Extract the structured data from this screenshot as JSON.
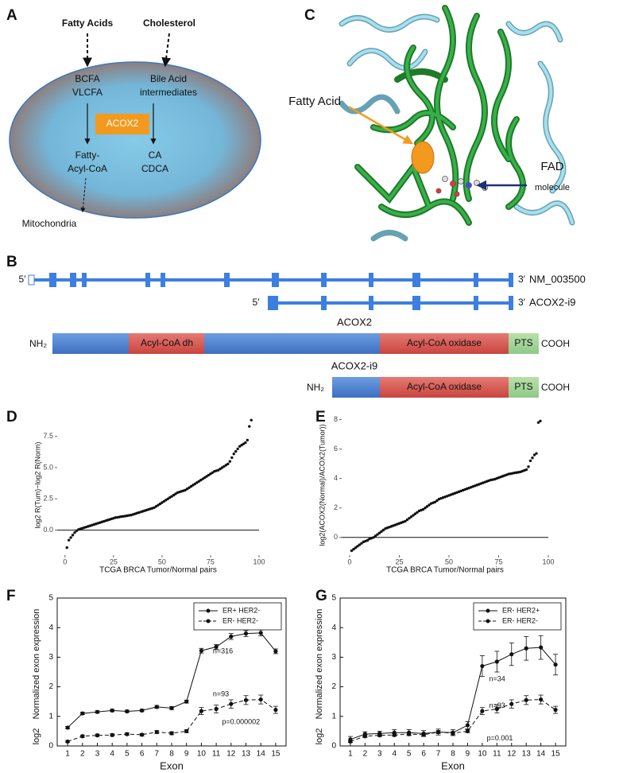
{
  "panel_labels": [
    "A",
    "B",
    "C",
    "D",
    "E",
    "F",
    "G"
  ],
  "panel_a": {
    "inputs": [
      "Fatty Acids",
      "Cholesterol"
    ],
    "left_substrates": [
      "BCFA",
      "VLCFA"
    ],
    "right_substrates": [
      "Bile Acid",
      "intermediates"
    ],
    "enzyme": "ACOX2",
    "left_products": [
      "Fatty-",
      "Acyl-CoA"
    ],
    "right_products": [
      "CA",
      "CDCA"
    ],
    "destination": "Mitochondria"
  },
  "panel_b": {
    "transcripts": [
      {
        "five_prime": "5′",
        "three_prime": "3′",
        "name": "NM_003500"
      },
      {
        "five_prime": "5′",
        "three_prime": "3′",
        "name": "ACOX2-i9"
      }
    ],
    "proteins": [
      {
        "name": "ACOX2",
        "n_term": "NH₂",
        "c_term": "COOH",
        "domains": [
          "Acyl-CoA dh",
          "Acyl-CoA oxidase",
          "PTS"
        ]
      },
      {
        "name": "ACOX2-i9",
        "n_term": "NH₂",
        "c_term": "COOH",
        "domains": [
          "Acyl-CoA oxidase",
          "PTS"
        ]
      }
    ]
  },
  "panel_c": {
    "ligand": "Fatty Acid",
    "cofactor": [
      "FAD",
      "molecule"
    ]
  },
  "chart_data": [
    {
      "type": "scatter",
      "xlabel": "TCGA BRCA Tumor/Normal pairs",
      "ylabel": "log2 R(Tum)−log2 R(Norm)",
      "x": [
        1,
        2,
        3,
        4,
        5,
        6,
        7,
        8,
        9,
        10,
        11,
        12,
        13,
        14,
        15,
        16,
        17,
        18,
        19,
        20,
        21,
        22,
        23,
        24,
        25,
        26,
        27,
        28,
        29,
        30,
        31,
        32,
        33,
        34,
        35,
        36,
        37,
        38,
        39,
        40,
        41,
        42,
        43,
        44,
        45,
        46,
        47,
        48,
        49,
        50,
        51,
        52,
        53,
        54,
        55,
        56,
        57,
        58,
        59,
        60,
        61,
        62,
        63,
        64,
        65,
        66,
        67,
        68,
        69,
        70,
        71,
        72,
        73,
        74,
        75,
        76,
        77,
        78,
        79,
        80,
        81,
        82,
        83,
        84,
        85,
        86,
        87,
        88,
        89,
        90,
        91,
        92,
        93,
        94,
        95,
        96
      ],
      "values": [
        -1.4,
        -0.8,
        -0.6,
        -0.4,
        -0.2,
        -0.05,
        0.05,
        0.1,
        0.15,
        0.2,
        0.25,
        0.3,
        0.35,
        0.4,
        0.45,
        0.5,
        0.55,
        0.6,
        0.65,
        0.7,
        0.75,
        0.8,
        0.85,
        0.9,
        0.95,
        1.0,
        1.02,
        1.05,
        1.08,
        1.1,
        1.12,
        1.15,
        1.18,
        1.2,
        1.25,
        1.3,
        1.35,
        1.4,
        1.45,
        1.5,
        1.55,
        1.6,
        1.65,
        1.7,
        1.75,
        1.8,
        1.9,
        2.0,
        2.1,
        2.2,
        2.3,
        2.4,
        2.5,
        2.6,
        2.7,
        2.8,
        2.9,
        3.0,
        3.05,
        3.1,
        3.15,
        3.2,
        3.3,
        3.4,
        3.5,
        3.6,
        3.7,
        3.8,
        3.9,
        4.0,
        4.1,
        4.2,
        4.3,
        4.4,
        4.5,
        4.6,
        4.7,
        4.75,
        4.8,
        4.9,
        5.0,
        5.1,
        5.2,
        5.3,
        5.5,
        5.8,
        6.1,
        6.3,
        6.5,
        6.7,
        6.8,
        6.9,
        7.0,
        7.2,
        8.3,
        8.8
      ],
      "color": "#111111",
      "reference_line": 0,
      "xlim": [
        -4,
        100
      ],
      "xticks": [
        0,
        25,
        50,
        75,
        100
      ],
      "ylim": [
        -2,
        9.2
      ],
      "yticks": [
        {
          "value": 0,
          "label": "0.0"
        },
        2.5,
        {
          "value": 5,
          "label": "5.0"
        },
        7.5
      ]
    },
    {
      "type": "scatter",
      "xlabel": "TCGA BRCA Tumor/Normal pairs",
      "ylabel": "log2(ACOX2(Normal)/ACOX2(Tumor))",
      "x": [
        1,
        2,
        3,
        4,
        5,
        6,
        7,
        8,
        9,
        10,
        11,
        12,
        13,
        14,
        15,
        16,
        17,
        18,
        19,
        20,
        21,
        22,
        23,
        24,
        25,
        26,
        27,
        28,
        29,
        30,
        31,
        32,
        33,
        34,
        35,
        36,
        37,
        38,
        39,
        40,
        41,
        42,
        43,
        44,
        45,
        46,
        47,
        48,
        49,
        50,
        51,
        52,
        53,
        54,
        55,
        56,
        57,
        58,
        59,
        60,
        61,
        62,
        63,
        64,
        65,
        66,
        67,
        68,
        69,
        70,
        71,
        72,
        73,
        74,
        75,
        76,
        77,
        78,
        79,
        80,
        81,
        82,
        83,
        84,
        85,
        86,
        87,
        88,
        89,
        90,
        91,
        92,
        93,
        94,
        95,
        96
      ],
      "values": [
        -0.9,
        -0.8,
        -0.7,
        -0.6,
        -0.5,
        -0.4,
        -0.3,
        -0.25,
        -0.2,
        -0.1,
        -0.05,
        0.0,
        0.1,
        0.2,
        0.3,
        0.4,
        0.5,
        0.6,
        0.65,
        0.7,
        0.75,
        0.8,
        0.85,
        0.9,
        0.95,
        1.0,
        1.05,
        1.1,
        1.2,
        1.3,
        1.4,
        1.5,
        1.6,
        1.7,
        1.8,
        1.85,
        1.9,
        2.0,
        2.1,
        2.2,
        2.3,
        2.35,
        2.4,
        2.5,
        2.6,
        2.65,
        2.7,
        2.75,
        2.8,
        2.85,
        2.9,
        2.95,
        3.0,
        3.05,
        3.1,
        3.15,
        3.2,
        3.25,
        3.3,
        3.35,
        3.4,
        3.45,
        3.5,
        3.55,
        3.6,
        3.65,
        3.7,
        3.75,
        3.8,
        3.85,
        3.9,
        3.92,
        3.95,
        4.0,
        4.05,
        4.1,
        4.15,
        4.2,
        4.25,
        4.3,
        4.32,
        4.35,
        4.38,
        4.4,
        4.42,
        4.45,
        4.5,
        4.55,
        4.6,
        4.8,
        5.2,
        5.4,
        5.6,
        5.7,
        7.8,
        7.9
      ],
      "color": "#111111",
      "reference_line": 0,
      "xlim": [
        -4,
        100
      ],
      "xticks": [
        0,
        25,
        50,
        75,
        100
      ],
      "ylim": [
        -1.2,
        8.3
      ],
      "yticks": [
        0,
        2,
        4,
        6,
        8
      ]
    },
    {
      "type": "line",
      "xlabel": "Exon",
      "ylabel": "Normalized exon expression",
      "ylabel_note": "log2",
      "x": [
        1,
        2,
        3,
        4,
        5,
        6,
        7,
        8,
        9,
        10,
        11,
        12,
        13,
        14,
        15
      ],
      "series": [
        {
          "name": "ER+ HER2-",
          "color": "#111111",
          "linestyle": "solid",
          "values": [
            0.62,
            1.1,
            1.15,
            1.2,
            1.17,
            1.2,
            1.32,
            1.28,
            1.5,
            3.22,
            3.35,
            3.7,
            3.8,
            3.82,
            3.2
          ],
          "errors": [
            0.04,
            0.04,
            0.04,
            0.04,
            0.04,
            0.04,
            0.05,
            0.05,
            0.05,
            0.08,
            0.08,
            0.1,
            0.1,
            0.1,
            0.08
          ]
        },
        {
          "name": "ER- HER2-",
          "color": "#111111",
          "linestyle": "dashed",
          "values": [
            0.15,
            0.33,
            0.36,
            0.37,
            0.4,
            0.38,
            0.47,
            0.43,
            0.5,
            1.18,
            1.25,
            1.42,
            1.55,
            1.57,
            1.22
          ],
          "errors": [
            0.03,
            0.04,
            0.04,
            0.04,
            0.04,
            0.04,
            0.05,
            0.05,
            0.05,
            0.12,
            0.13,
            0.14,
            0.15,
            0.15,
            0.12
          ]
        }
      ],
      "annotations": [
        "n=316",
        "n=93",
        "p=0.000002"
      ],
      "legend": "upper right",
      "xlim": [
        0.3,
        15.7
      ],
      "xticks": [
        1,
        2,
        3,
        4,
        5,
        6,
        7,
        8,
        9,
        10,
        11,
        12,
        13,
        14,
        15
      ],
      "ylim": [
        0,
        5
      ],
      "yticks": [
        0,
        1,
        2,
        3,
        4,
        5
      ]
    },
    {
      "type": "line",
      "xlabel": "Exon",
      "ylabel": "Normalized exon expression",
      "ylabel_note": "log2",
      "x": [
        1,
        2,
        3,
        4,
        5,
        6,
        7,
        8,
        9,
        10,
        11,
        12,
        13,
        14,
        15
      ],
      "series": [
        {
          "name": "ER- HER2+",
          "color": "#111111",
          "linestyle": "solid",
          "values": [
            0.22,
            0.4,
            0.42,
            0.45,
            0.45,
            0.42,
            0.47,
            0.45,
            0.7,
            2.7,
            2.85,
            3.1,
            3.3,
            3.33,
            2.75
          ],
          "errors": [
            0.1,
            0.08,
            0.08,
            0.1,
            0.1,
            0.1,
            0.1,
            0.1,
            0.12,
            0.35,
            0.35,
            0.38,
            0.4,
            0.4,
            0.35
          ]
        },
        {
          "name": "ER- HER2-",
          "color": "#111111",
          "linestyle": "dashed",
          "values": [
            0.15,
            0.33,
            0.36,
            0.37,
            0.4,
            0.38,
            0.47,
            0.43,
            0.5,
            1.18,
            1.25,
            1.42,
            1.55,
            1.57,
            1.22
          ],
          "errors": [
            0.03,
            0.04,
            0.04,
            0.04,
            0.04,
            0.04,
            0.05,
            0.05,
            0.05,
            0.12,
            0.13,
            0.14,
            0.15,
            0.15,
            0.12
          ]
        }
      ],
      "annotations": [
        "n=34",
        "n=93",
        "p=0.001"
      ],
      "legend": "upper right",
      "xlim": [
        0.3,
        15.7
      ],
      "xticks": [
        1,
        2,
        3,
        4,
        5,
        6,
        7,
        8,
        9,
        10,
        11,
        12,
        13,
        14,
        15
      ],
      "ylim": [
        0,
        5
      ],
      "yticks": [
        0,
        1,
        2,
        3,
        4,
        5
      ]
    }
  ]
}
